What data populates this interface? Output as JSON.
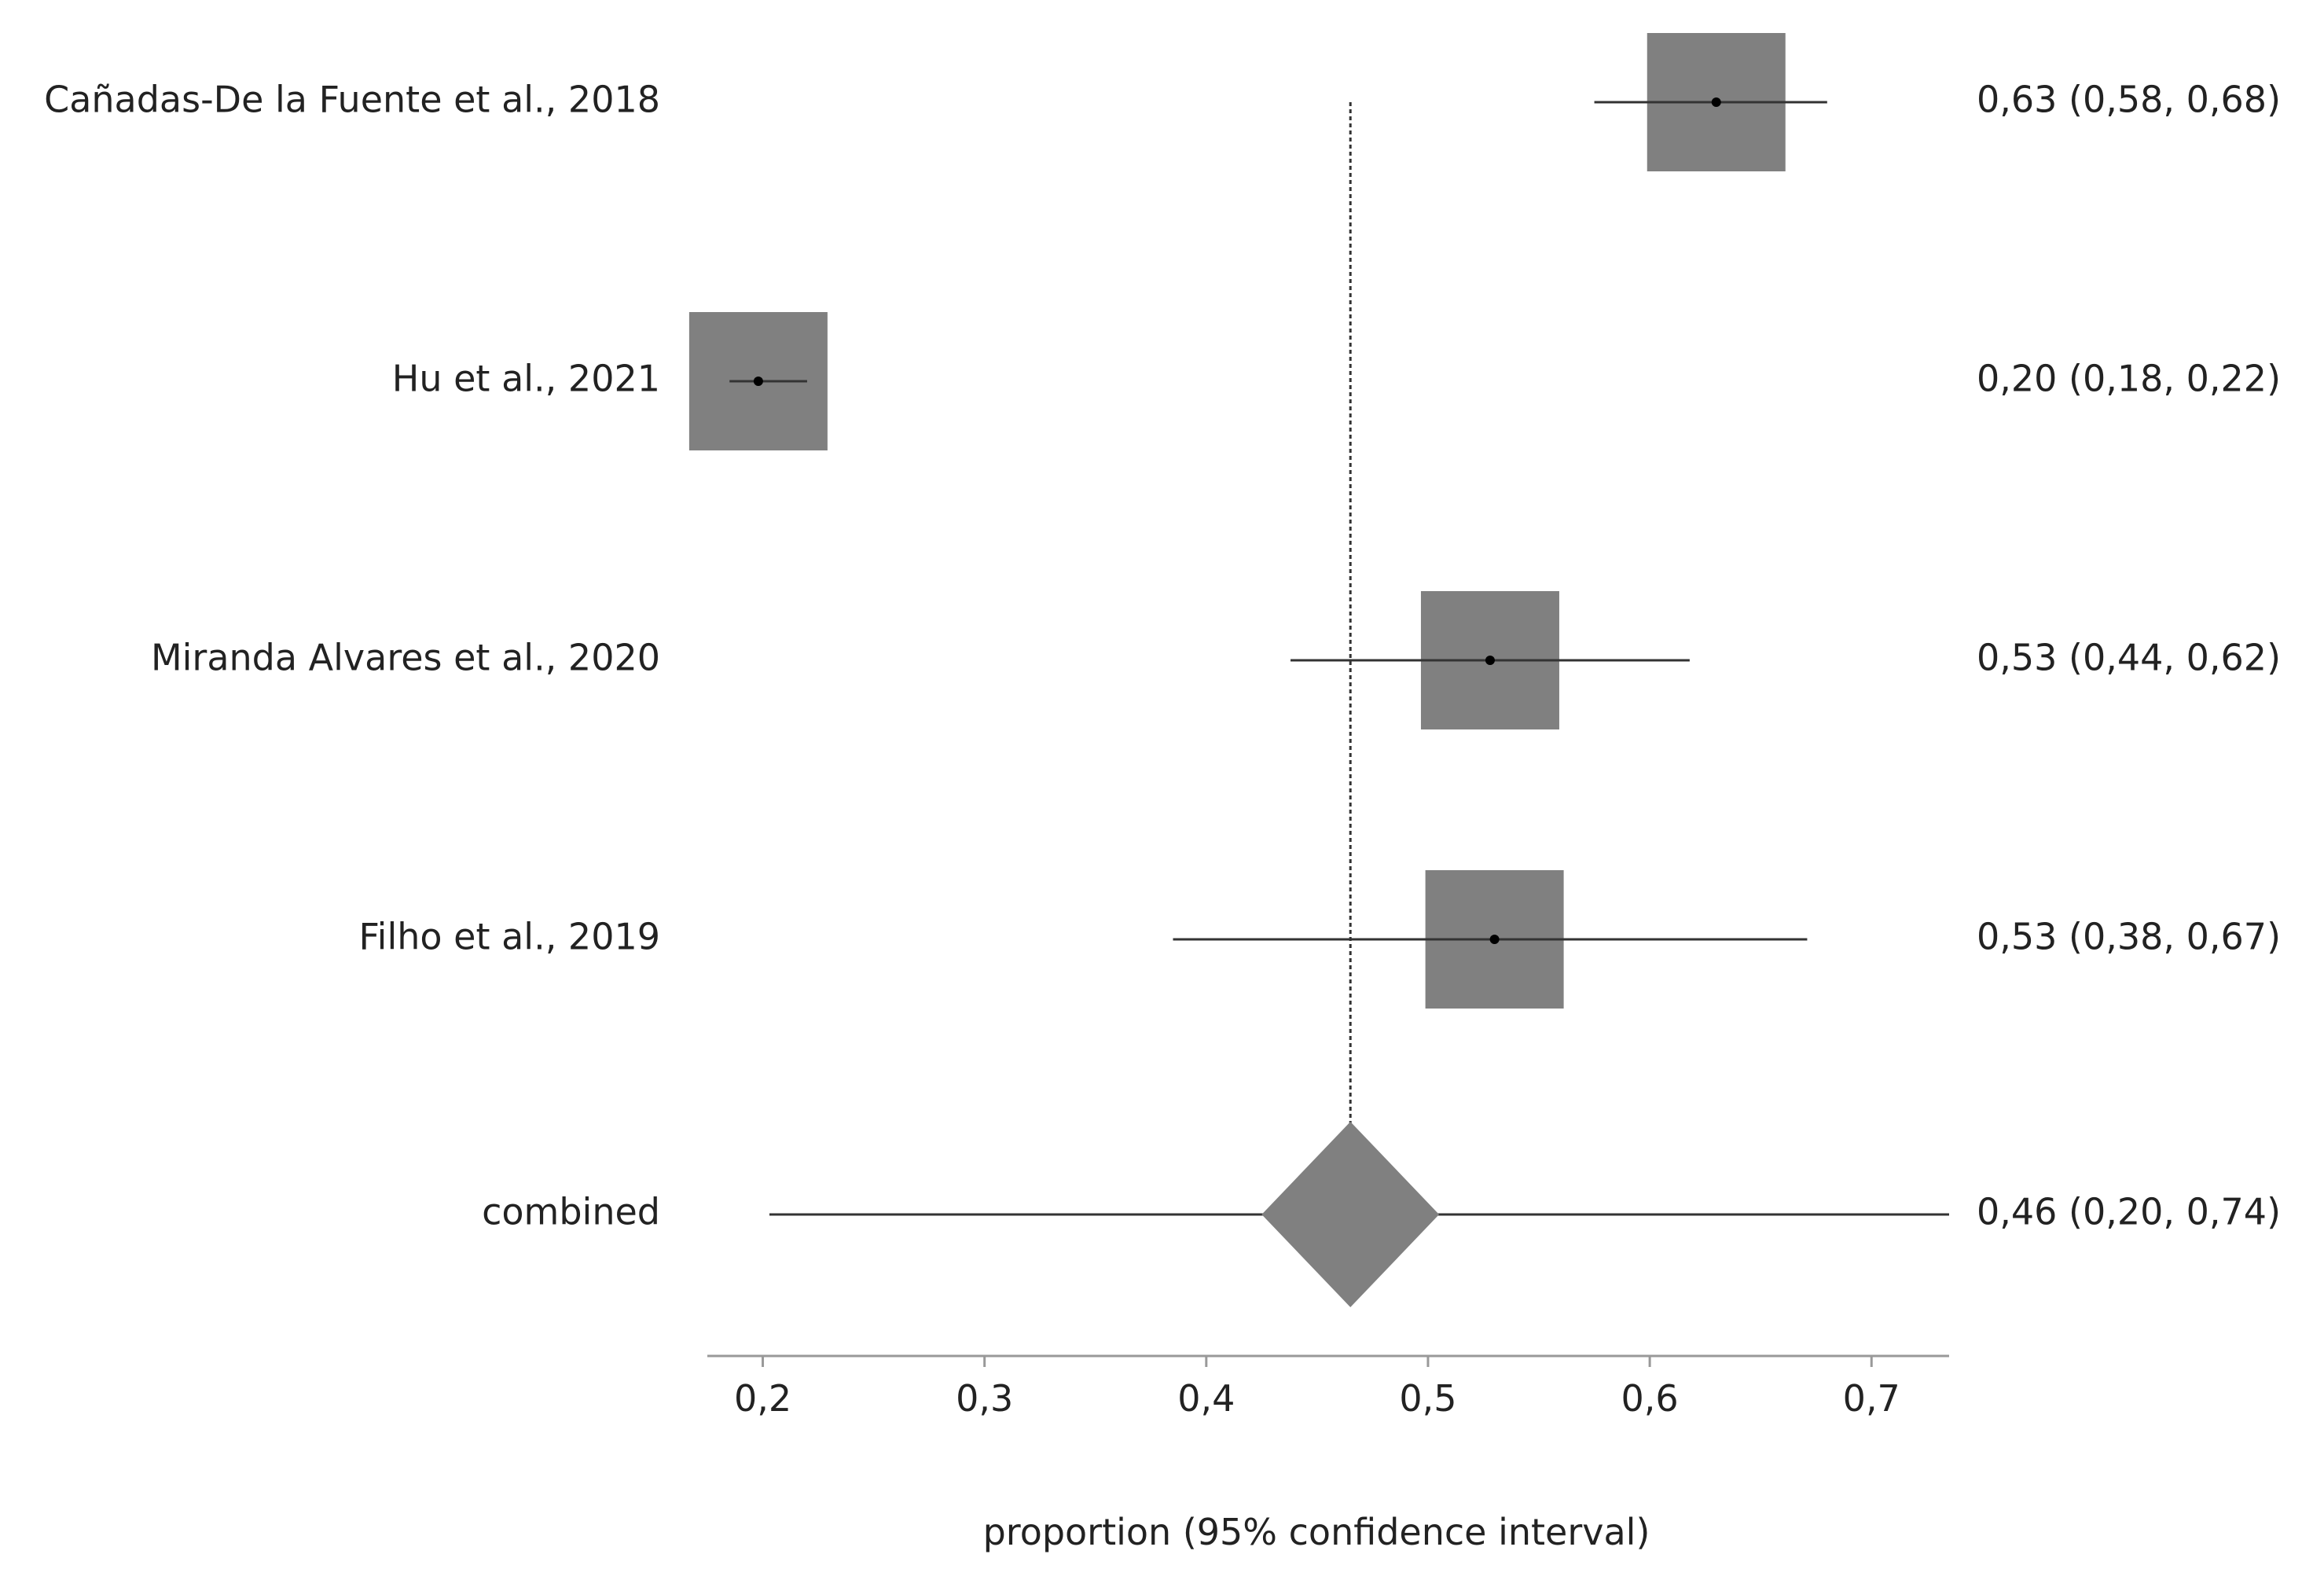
{
  "chart_data": {
    "type": "forest",
    "xlabel": "proportion (95% confidence interval)",
    "xlim": [
      0.175,
      0.735
    ],
    "xticks": [
      0.2,
      0.3,
      0.4,
      0.5,
      0.6,
      0.7
    ],
    "xtick_labels": [
      "0,2",
      "0,3",
      "0,4",
      "0,5",
      "0,6",
      "0,7"
    ],
    "reference_line": 0.465,
    "studies": [
      {
        "name": "Cañadas-De la Fuente et al., 2018",
        "estimate": 0.63,
        "lower": 0.575,
        "upper": 0.68,
        "label": "0,63 (0,58, 0,68)"
      },
      {
        "name": "Hu et al., 2021",
        "estimate": 0.198,
        "lower": 0.185,
        "upper": 0.22,
        "label": "0,20 (0,18, 0,22)"
      },
      {
        "name": "Miranda Alvares et al., 2020",
        "estimate": 0.528,
        "lower": 0.438,
        "upper": 0.618,
        "label": "0,53 (0,44, 0,62)"
      },
      {
        "name": "Filho et al., 2019",
        "estimate": 0.53,
        "lower": 0.385,
        "upper": 0.671,
        "label": "0,53 (0,38, 0,67)"
      }
    ],
    "combined": {
      "name": "combined",
      "estimate": 0.465,
      "lower": 0.203,
      "upper": 0.735,
      "diamond_lower": 0.425,
      "diamond_upper": 0.505,
      "label": "0,46 (0,20, 0,74)"
    }
  }
}
